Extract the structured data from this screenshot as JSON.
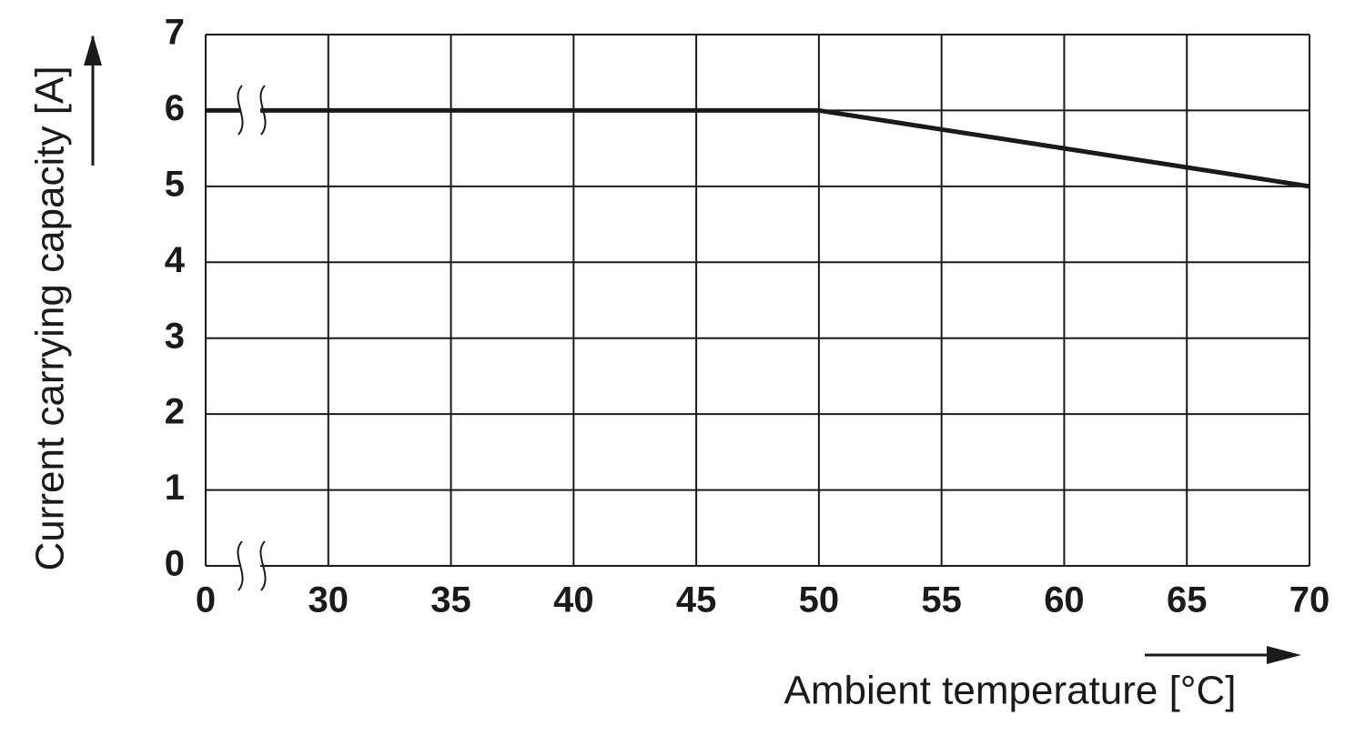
{
  "chart_data": {
    "type": "line",
    "x_label": "Ambient temperature [°C]",
    "y_label": "Current carrying capacity [A]",
    "categories": [
      0,
      30,
      35,
      40,
      45,
      50,
      55,
      60,
      65,
      70
    ],
    "values": [
      6,
      6,
      6,
      6,
      6,
      6,
      5.75,
      5.5,
      5.25,
      5
    ],
    "color": "#1a1a1a",
    "ylim": [
      0,
      7
    ],
    "yticks": [
      0,
      1,
      2,
      3,
      4,
      5,
      6,
      7
    ],
    "grid": true
  }
}
